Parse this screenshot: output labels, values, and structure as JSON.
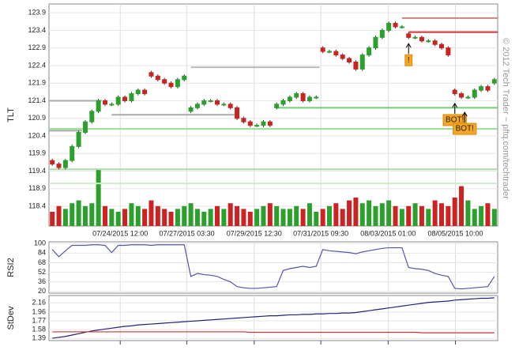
{
  "credit": "© 2012 Tech Trader ~ pftq.com/techtrader",
  "chart_data": [
    {
      "type": "candlestick",
      "ylabel": "TLT",
      "xlim": [
        -0.5,
        67.5
      ],
      "xticks": [
        {
          "value": 10.3,
          "label": "07/24/2015 12:00"
        },
        {
          "value": 20.4,
          "label": "07/27/2015 03:30"
        },
        {
          "value": 30.6,
          "label": "07/29/2015 12:30"
        },
        {
          "value": 40.7,
          "label": "07/31/2015 09:30"
        },
        {
          "value": 50.9,
          "label": "08/03/2015 01:00"
        },
        {
          "value": 61.1,
          "label": "08/05/2015 10:00"
        }
      ],
      "ylim": [
        117.84,
        124.15
      ],
      "yticks": [
        118.4,
        118.9,
        119.4,
        119.9,
        120.4,
        120.9,
        121.4,
        121.9,
        122.4,
        122.9,
        123.4,
        123.9
      ],
      "grid": true,
      "up_color": "#2ca02c",
      "down_color": "#cc2222",
      "open": [
        119.7,
        119.6,
        119.5,
        119.7,
        120.1,
        120.5,
        120.8,
        121.1,
        121.4,
        121.3,
        121.3,
        121.5,
        121.4,
        121.6,
        121.7,
        122.2,
        122.1,
        122.0,
        121.9,
        121.8,
        122.0,
        121.1,
        121.2,
        121.3,
        121.4,
        121.4,
        121.3,
        121.3,
        121.2,
        120.9,
        120.8,
        120.7,
        120.7,
        120.8,
        121.2,
        121.3,
        121.4,
        121.5,
        121.6,
        121.4,
        121.5,
        122.9,
        122.8,
        122.8,
        122.7,
        122.6,
        122.5,
        122.3,
        122.7,
        122.9,
        123.2,
        123.4,
        123.6,
        123.5,
        123.3,
        123.2,
        123.2,
        123.1,
        123.1,
        123.0,
        122.9,
        121.7,
        121.6,
        121.5,
        121.5,
        121.7,
        121.8,
        121.9
      ],
      "high": [
        119.75,
        119.65,
        119.75,
        120.15,
        120.55,
        120.85,
        121.15,
        121.45,
        121.45,
        121.35,
        121.55,
        121.55,
        121.65,
        121.75,
        121.75,
        122.25,
        122.15,
        122.05,
        121.95,
        122.05,
        122.15,
        121.25,
        121.35,
        121.45,
        121.45,
        121.45,
        121.35,
        121.35,
        121.25,
        120.95,
        120.85,
        120.75,
        120.85,
        120.85,
        121.35,
        121.45,
        121.55,
        121.65,
        121.65,
        121.55,
        121.55,
        122.95,
        122.85,
        122.85,
        122.75,
        122.65,
        122.55,
        122.75,
        122.95,
        123.25,
        123.45,
        123.65,
        123.65,
        123.55,
        123.35,
        123.25,
        123.25,
        123.15,
        123.15,
        123.05,
        122.95,
        121.75,
        121.65,
        121.55,
        121.75,
        121.85,
        121.85,
        122.05
      ],
      "low": [
        119.55,
        119.45,
        119.45,
        119.65,
        120.05,
        120.45,
        120.75,
        121.05,
        121.25,
        121.25,
        121.25,
        121.35,
        121.35,
        121.55,
        121.55,
        122.05,
        121.95,
        121.85,
        121.75,
        121.75,
        121.95,
        121.05,
        121.15,
        121.25,
        121.35,
        121.25,
        121.25,
        121.15,
        120.85,
        120.75,
        120.65,
        120.65,
        120.65,
        120.65,
        121.15,
        121.25,
        121.35,
        121.45,
        121.35,
        121.35,
        121.45,
        122.75,
        122.75,
        122.65,
        122.55,
        122.45,
        122.25,
        122.25,
        122.65,
        122.85,
        123.15,
        123.35,
        123.45,
        123.45,
        123.15,
        123.15,
        123.05,
        123.05,
        122.95,
        122.85,
        122.65,
        121.55,
        121.45,
        121.45,
        121.45,
        121.65,
        121.65,
        121.85
      ],
      "close": [
        119.6,
        119.5,
        119.7,
        120.1,
        120.5,
        120.8,
        121.1,
        121.4,
        121.3,
        121.3,
        121.5,
        121.4,
        121.6,
        121.7,
        121.6,
        122.1,
        122.0,
        121.9,
        121.8,
        122.0,
        122.1,
        121.2,
        121.3,
        121.4,
        121.4,
        121.3,
        121.3,
        121.2,
        120.9,
        120.8,
        120.7,
        120.7,
        120.8,
        120.7,
        121.3,
        121.4,
        121.5,
        121.6,
        121.4,
        121.5,
        121.5,
        122.8,
        122.8,
        122.7,
        122.6,
        122.5,
        122.3,
        122.7,
        122.9,
        123.2,
        123.4,
        123.6,
        123.5,
        123.5,
        123.2,
        123.2,
        123.1,
        123.1,
        123.0,
        122.9,
        122.7,
        121.6,
        121.5,
        121.5,
        121.7,
        121.8,
        121.7,
        122.0
      ],
      "volume": [
        25,
        35,
        30,
        40,
        45,
        35,
        40,
        100,
        35,
        30,
        25,
        30,
        40,
        35,
        30,
        45,
        35,
        30,
        25,
        30,
        35,
        40,
        30,
        25,
        30,
        35,
        30,
        40,
        35,
        30,
        25,
        30,
        35,
        40,
        35,
        30,
        30,
        35,
        30,
        40,
        25,
        30,
        35,
        40,
        30,
        45,
        50,
        40,
        45,
        35,
        40,
        45,
        35,
        30,
        35,
        40,
        35,
        30,
        45,
        40,
        35,
        50,
        70,
        45,
        30,
        35,
        40,
        30
      ],
      "vlim": [
        0,
        100
      ],
      "levels": [
        {
          "value": 121.4,
          "color": "#aaaaaa",
          "from": -0.5,
          "to": 7.5
        },
        {
          "value": 120.55,
          "color": "#aaaaaa",
          "from": -0.5,
          "to": 4.5
        },
        {
          "value": 121.0,
          "color": "#aaaaaa",
          "from": 9,
          "to": 28
        },
        {
          "value": 122.35,
          "color": "#bbbbbb",
          "from": 21,
          "to": 40.5
        },
        {
          "value": 123.75,
          "color": "#d08080",
          "from": 53,
          "to": 67.5
        },
        {
          "value": 123.35,
          "color": "#cc3333",
          "from": 54,
          "to": 67.5
        },
        {
          "value": 121.2,
          "color": "#77cc77",
          "from": 34,
          "to": 67.5
        },
        {
          "value": 120.6,
          "color": "#99dd99",
          "from": -0.5,
          "to": 67.5
        },
        {
          "value": 119.45,
          "color": "#aaddaa",
          "from": -0.5,
          "to": 67.5
        },
        {
          "value": 119.05,
          "color": "#cceecc",
          "from": -0.5,
          "to": 67.5
        }
      ],
      "annotations": [
        {
          "text": "!",
          "x": 54,
          "y": 122.55
        },
        {
          "text": "BOT!",
          "x": 61,
          "y": 120.85
        },
        {
          "text": "BOT!",
          "x": 62.5,
          "y": 120.6
        }
      ]
    },
    {
      "type": "line",
      "ylabel": "RSI2",
      "xlim": [
        -0.5,
        67.5
      ],
      "ylim": [
        17,
        103
      ],
      "yticks": [
        100,
        84,
        68,
        52,
        36,
        20
      ],
      "series": [
        {
          "color": "#5555aa",
          "values": [
            90,
            78,
            88,
            97,
            97,
            97,
            98,
            98,
            97,
            85,
            97,
            97,
            98,
            98,
            98,
            97,
            98,
            98,
            98,
            98,
            98,
            45,
            50,
            48,
            47,
            45,
            40,
            36,
            28,
            26,
            25,
            25,
            26,
            27,
            28,
            55,
            58,
            60,
            62,
            60,
            62,
            90,
            88,
            87,
            86,
            85,
            83,
            86,
            88,
            90,
            92,
            93,
            93,
            93,
            60,
            58,
            57,
            55,
            50,
            47,
            45,
            25,
            24,
            25,
            26,
            27,
            28,
            45
          ]
        }
      ]
    },
    {
      "type": "line",
      "ylabel": "StDev",
      "xlim": [
        -0.5,
        67.5
      ],
      "ylim": [
        1.34,
        2.32
      ],
      "yticks": [
        1.39,
        1.58,
        1.77,
        1.96,
        2.16
      ],
      "series": [
        {
          "color": "#222277",
          "values": [
            1.39,
            1.41,
            1.43,
            1.46,
            1.49,
            1.52,
            1.55,
            1.57,
            1.59,
            1.61,
            1.63,
            1.65,
            1.66,
            1.68,
            1.69,
            1.7,
            1.71,
            1.72,
            1.73,
            1.74,
            1.75,
            1.76,
            1.77,
            1.78,
            1.79,
            1.8,
            1.81,
            1.82,
            1.83,
            1.84,
            1.85,
            1.86,
            1.87,
            1.88,
            1.88,
            1.89,
            1.9,
            1.9,
            1.91,
            1.91,
            1.92,
            1.92,
            1.93,
            1.93,
            1.94,
            1.94,
            1.95,
            1.97,
            1.99,
            2.01,
            2.03,
            2.05,
            2.07,
            2.09,
            2.11,
            2.13,
            2.15,
            2.17,
            2.18,
            2.19,
            2.2,
            2.22,
            2.23,
            2.24,
            2.25,
            2.26,
            2.26,
            2.27
          ]
        },
        {
          "color": "#cc3333",
          "values": [
            1.53,
            1.53,
            1.53,
            1.53,
            1.53,
            1.53,
            1.53,
            1.53,
            1.53,
            1.53,
            1.53,
            1.53,
            1.53,
            1.53,
            1.53,
            1.53,
            1.53,
            1.53,
            1.53,
            1.53,
            1.53,
            1.53,
            1.53,
            1.53,
            1.53,
            1.53,
            1.53,
            1.53,
            1.53,
            1.53,
            1.52,
            1.52,
            1.52,
            1.52,
            1.52,
            1.52,
            1.52,
            1.52,
            1.52,
            1.52,
            1.52,
            1.52,
            1.52,
            1.52,
            1.52,
            1.52,
            1.52,
            1.52,
            1.52,
            1.52,
            1.52,
            1.52,
            1.52,
            1.52,
            1.52,
            1.52,
            1.51,
            1.51,
            1.51,
            1.51,
            1.51,
            1.51,
            1.51,
            1.51,
            1.51,
            1.51,
            1.51,
            1.51
          ]
        }
      ]
    }
  ]
}
